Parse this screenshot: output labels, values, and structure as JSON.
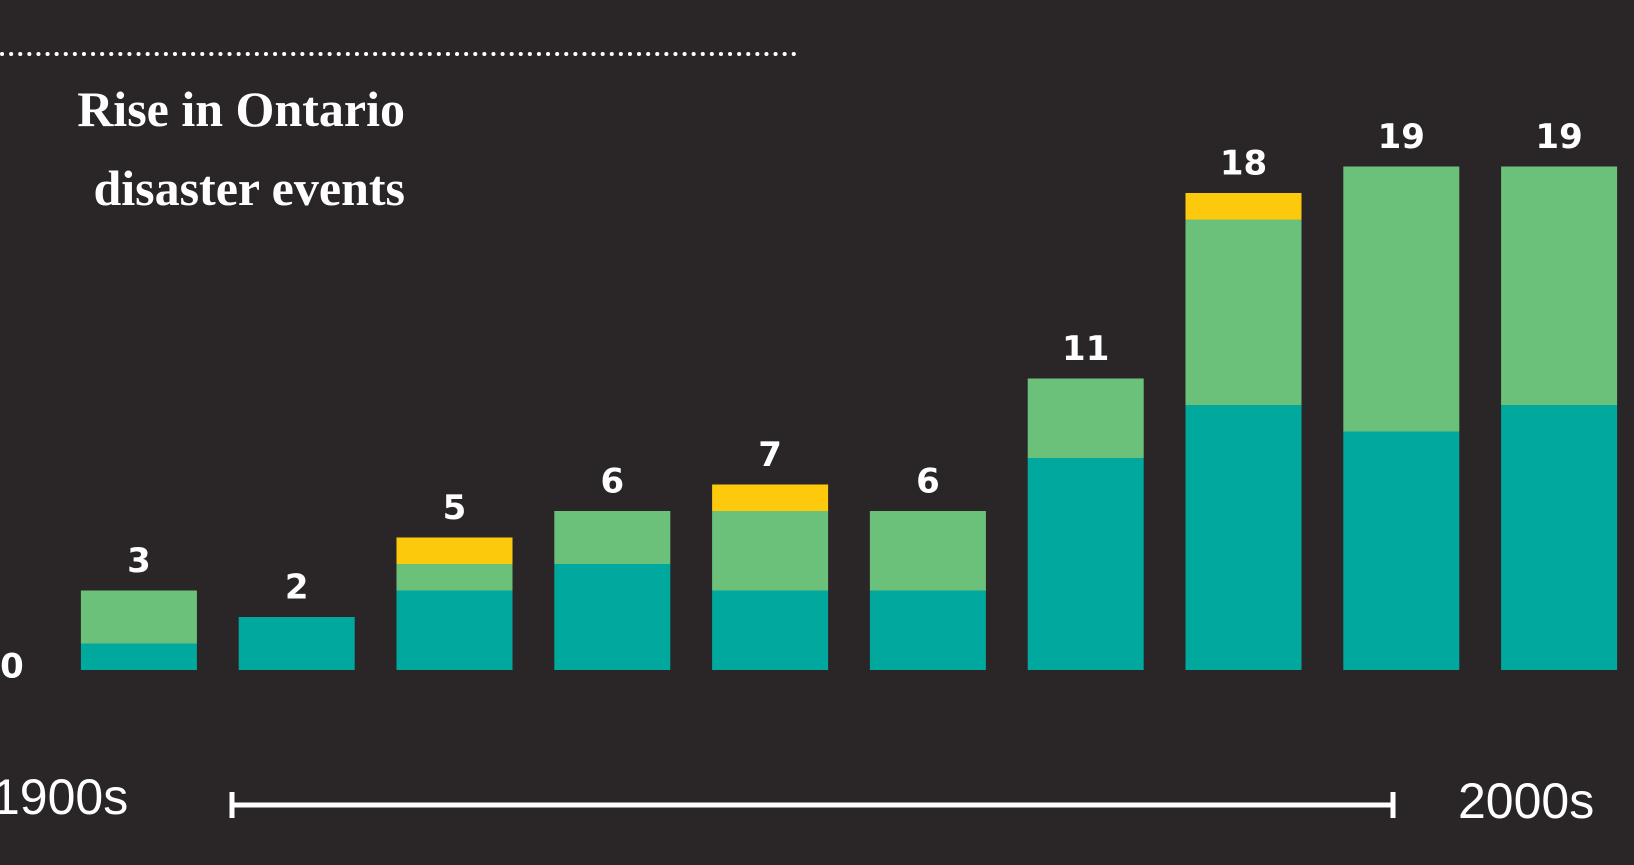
{
  "chart_data": {
    "type": "stacked-bar",
    "title_lines": [
      "Rise in Ontario",
      "disaster events"
    ],
    "categories": [
      null,
      null,
      null,
      null,
      null,
      null,
      null,
      null,
      null,
      null
    ],
    "series": [
      {
        "color": "#00a89d",
        "values": [
          1,
          2,
          3,
          4,
          3,
          3,
          8,
          10,
          9,
          10
        ]
      },
      {
        "color": "#6cc17a",
        "values": [
          2,
          0,
          1,
          2,
          3,
          3,
          3,
          7,
          10,
          9
        ]
      },
      {
        "color": "#fdc90d",
        "values": [
          0,
          0,
          1,
          0,
          1,
          0,
          0,
          1,
          0,
          0
        ]
      }
    ],
    "totals": [
      3,
      2,
      5,
      6,
      7,
      6,
      11,
      18,
      19,
      19
    ],
    "ylim": [
      0,
      20
    ],
    "yticks": [
      0
    ],
    "timeline": {
      "start": "1900s",
      "end": "2000s"
    }
  }
}
